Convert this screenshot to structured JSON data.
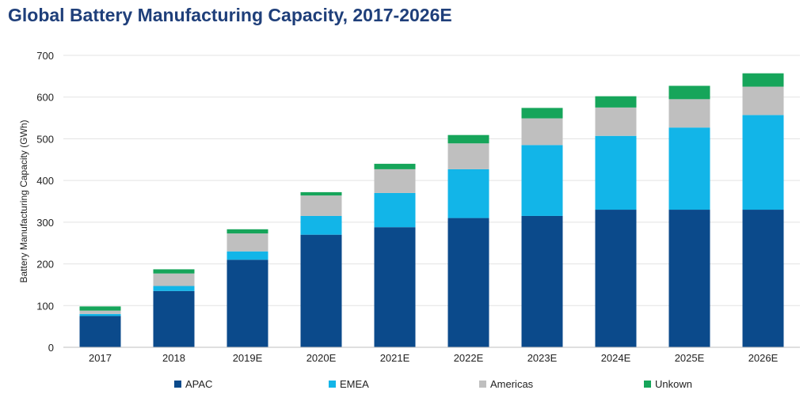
{
  "chart_data": {
    "type": "bar",
    "stacked": true,
    "title": "Global Battery Manufacturing Capacity, 2017-2026E",
    "xlabel": "",
    "ylabel": "Battery Manufacturing Capacity (GWh)",
    "ylim": [
      0,
      700
    ],
    "yticks": [
      "0",
      "100",
      "200",
      "300",
      "400",
      "500",
      "600",
      "700"
    ],
    "grid": true,
    "legend_position": "bottom",
    "categories": [
      "2017",
      "2018",
      "2019E",
      "2020E",
      "2021E",
      "2022E",
      "2023E",
      "2024E",
      "2025E",
      "2026E"
    ],
    "series": [
      {
        "name": "APAC",
        "color": "#0b4a8b",
        "values": [
          75,
          135,
          210,
          270,
          288,
          310,
          315,
          330,
          330,
          330
        ]
      },
      {
        "name": "EMEA",
        "color": "#12b5e8",
        "values": [
          5,
          12,
          20,
          45,
          82,
          117,
          170,
          177,
          197,
          227
        ]
      },
      {
        "name": "Americas",
        "color": "#bfbfbf",
        "values": [
          8,
          30,
          43,
          49,
          57,
          62,
          64,
          68,
          68,
          68
        ]
      },
      {
        "name": "Unkown",
        "color": "#16a55a",
        "values": [
          10,
          10,
          10,
          8,
          13,
          20,
          25,
          27,
          32,
          32
        ]
      }
    ]
  }
}
